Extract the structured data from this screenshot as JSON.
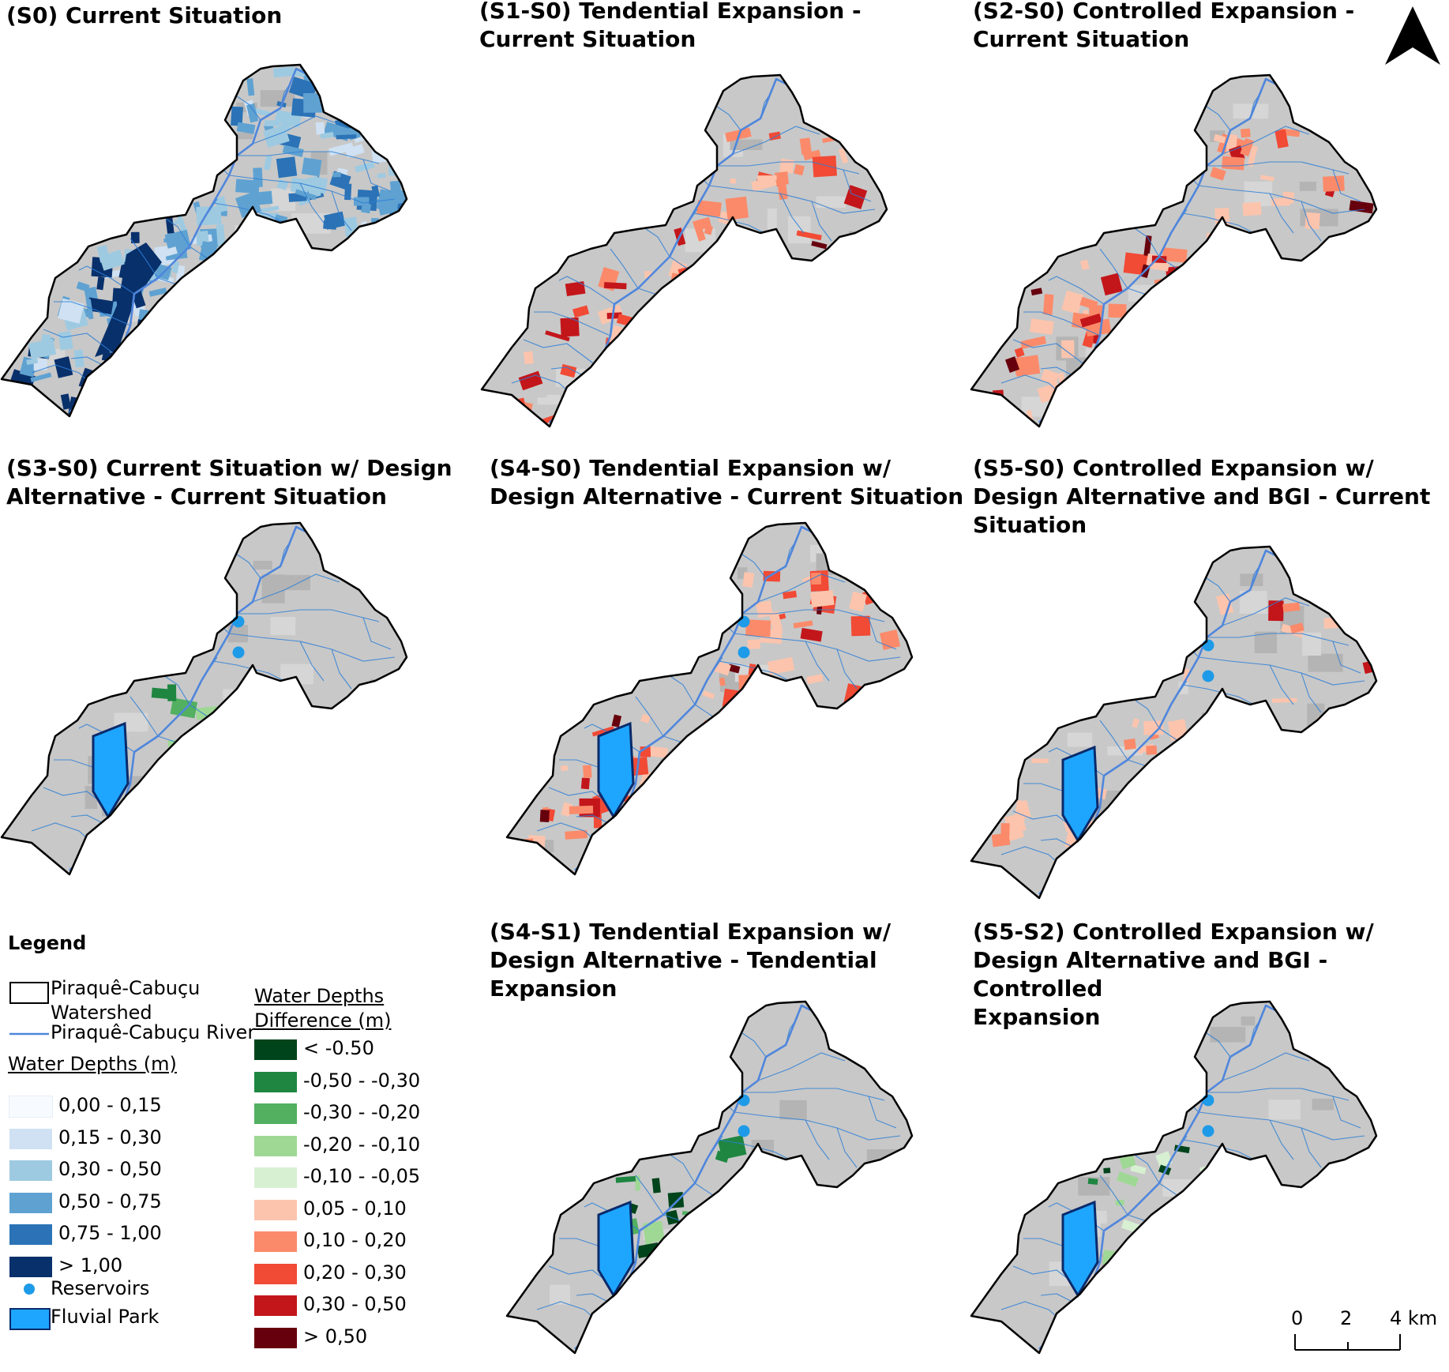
{
  "panels": [
    {
      "id": "s0",
      "title": "(S0) Current  Situation",
      "scheme": "depth",
      "reservoirs": false,
      "park": false
    },
    {
      "id": "s1",
      "title": "(S1-S0) Tendential Expansion -\nCurrent Situation",
      "scheme": "red-high",
      "reservoirs": false,
      "park": false
    },
    {
      "id": "s2",
      "title": "(S2-S0) Controlled Expansion -\nCurrent Situation",
      "scheme": "red-high",
      "reservoirs": false,
      "park": false
    },
    {
      "id": "s3",
      "title": "(S3-S0) Current Situation w/ Design\nAlternative - Current Situation",
      "scheme": "green",
      "reservoirs": true,
      "park": true
    },
    {
      "id": "s4",
      "title": "(S4-S0) Tendential Expansion w/\nDesign Alternative - Current Situation",
      "scheme": "red-high",
      "reservoirs": true,
      "park": true
    },
    {
      "id": "s5",
      "title": "(S5-S0) Controlled Expansion w/\nDesign Alternative and BGI - Current\nSituation",
      "scheme": "red-low",
      "reservoirs": true,
      "park": true
    },
    {
      "id": "s4s1",
      "title": "(S4-S1) Tendential Expansion w/\nDesign Alternative - Tendential\nExpansion",
      "scheme": "green",
      "reservoirs": true,
      "park": true
    },
    {
      "id": "s5s2",
      "title": "(S5-S2) Controlled Expansion w/\nDesign Alternative and BGI - Controlled\nExpansion",
      "scheme": "green-light",
      "reservoirs": true,
      "park": true
    }
  ],
  "legend": {
    "title": "Legend",
    "watershed": "Piraquê-Cabuçu\nWatershed",
    "river": "Piraquê-Cabuçu River",
    "depths_title": "Water Depths (m)",
    "depths": [
      {
        "label": "0,00 - 0,15",
        "color": "#f7fbff"
      },
      {
        "label": "0,15 - 0,30",
        "color": "#cfe1f2"
      },
      {
        "label": "0,30 - 0,50",
        "color": "#9ecae1"
      },
      {
        "label": "0,50 - 0,75",
        "color": "#5fa2d2"
      },
      {
        "label": "0,75 - 1,00",
        "color": "#2b73b6"
      },
      {
        "label": "> 1,00",
        "color": "#08306b"
      }
    ],
    "reservoirs": "Reservoirs",
    "park": "Fluvial Park",
    "diff_title": "Water Depths\nDifference (m)",
    "diffs": [
      {
        "label": "< -0.50",
        "color": "#00441b"
      },
      {
        "label": "-0,50 - -0,30",
        "color": "#1e8641"
      },
      {
        "label": "-0,30 - -0,20",
        "color": "#52b060"
      },
      {
        "label": "-0,20 - -0,10",
        "color": "#9fd895"
      },
      {
        "label": "-0,10 - -0,05",
        "color": "#d8f0d2"
      },
      {
        "label": "0,05 - 0,10",
        "color": "#fcc4ad"
      },
      {
        "label": "0,10 - 0,20",
        "color": "#fb8a6a"
      },
      {
        "label": "0,20 - 0,30",
        "color": "#f14a35"
      },
      {
        "label": "0,30 - 0,50",
        "color": "#c3161b"
      },
      {
        "label": "> 0,50",
        "color": "#67000d"
      }
    ]
  },
  "scale": {
    "labels": [
      "0",
      "2",
      "4 km"
    ]
  },
  "colors": {
    "base": "#c8c8c8",
    "river": "#4f86dc",
    "stream": "#2e7fd6",
    "reservoir": "#1e9be8",
    "park": "#1ea6ff"
  }
}
